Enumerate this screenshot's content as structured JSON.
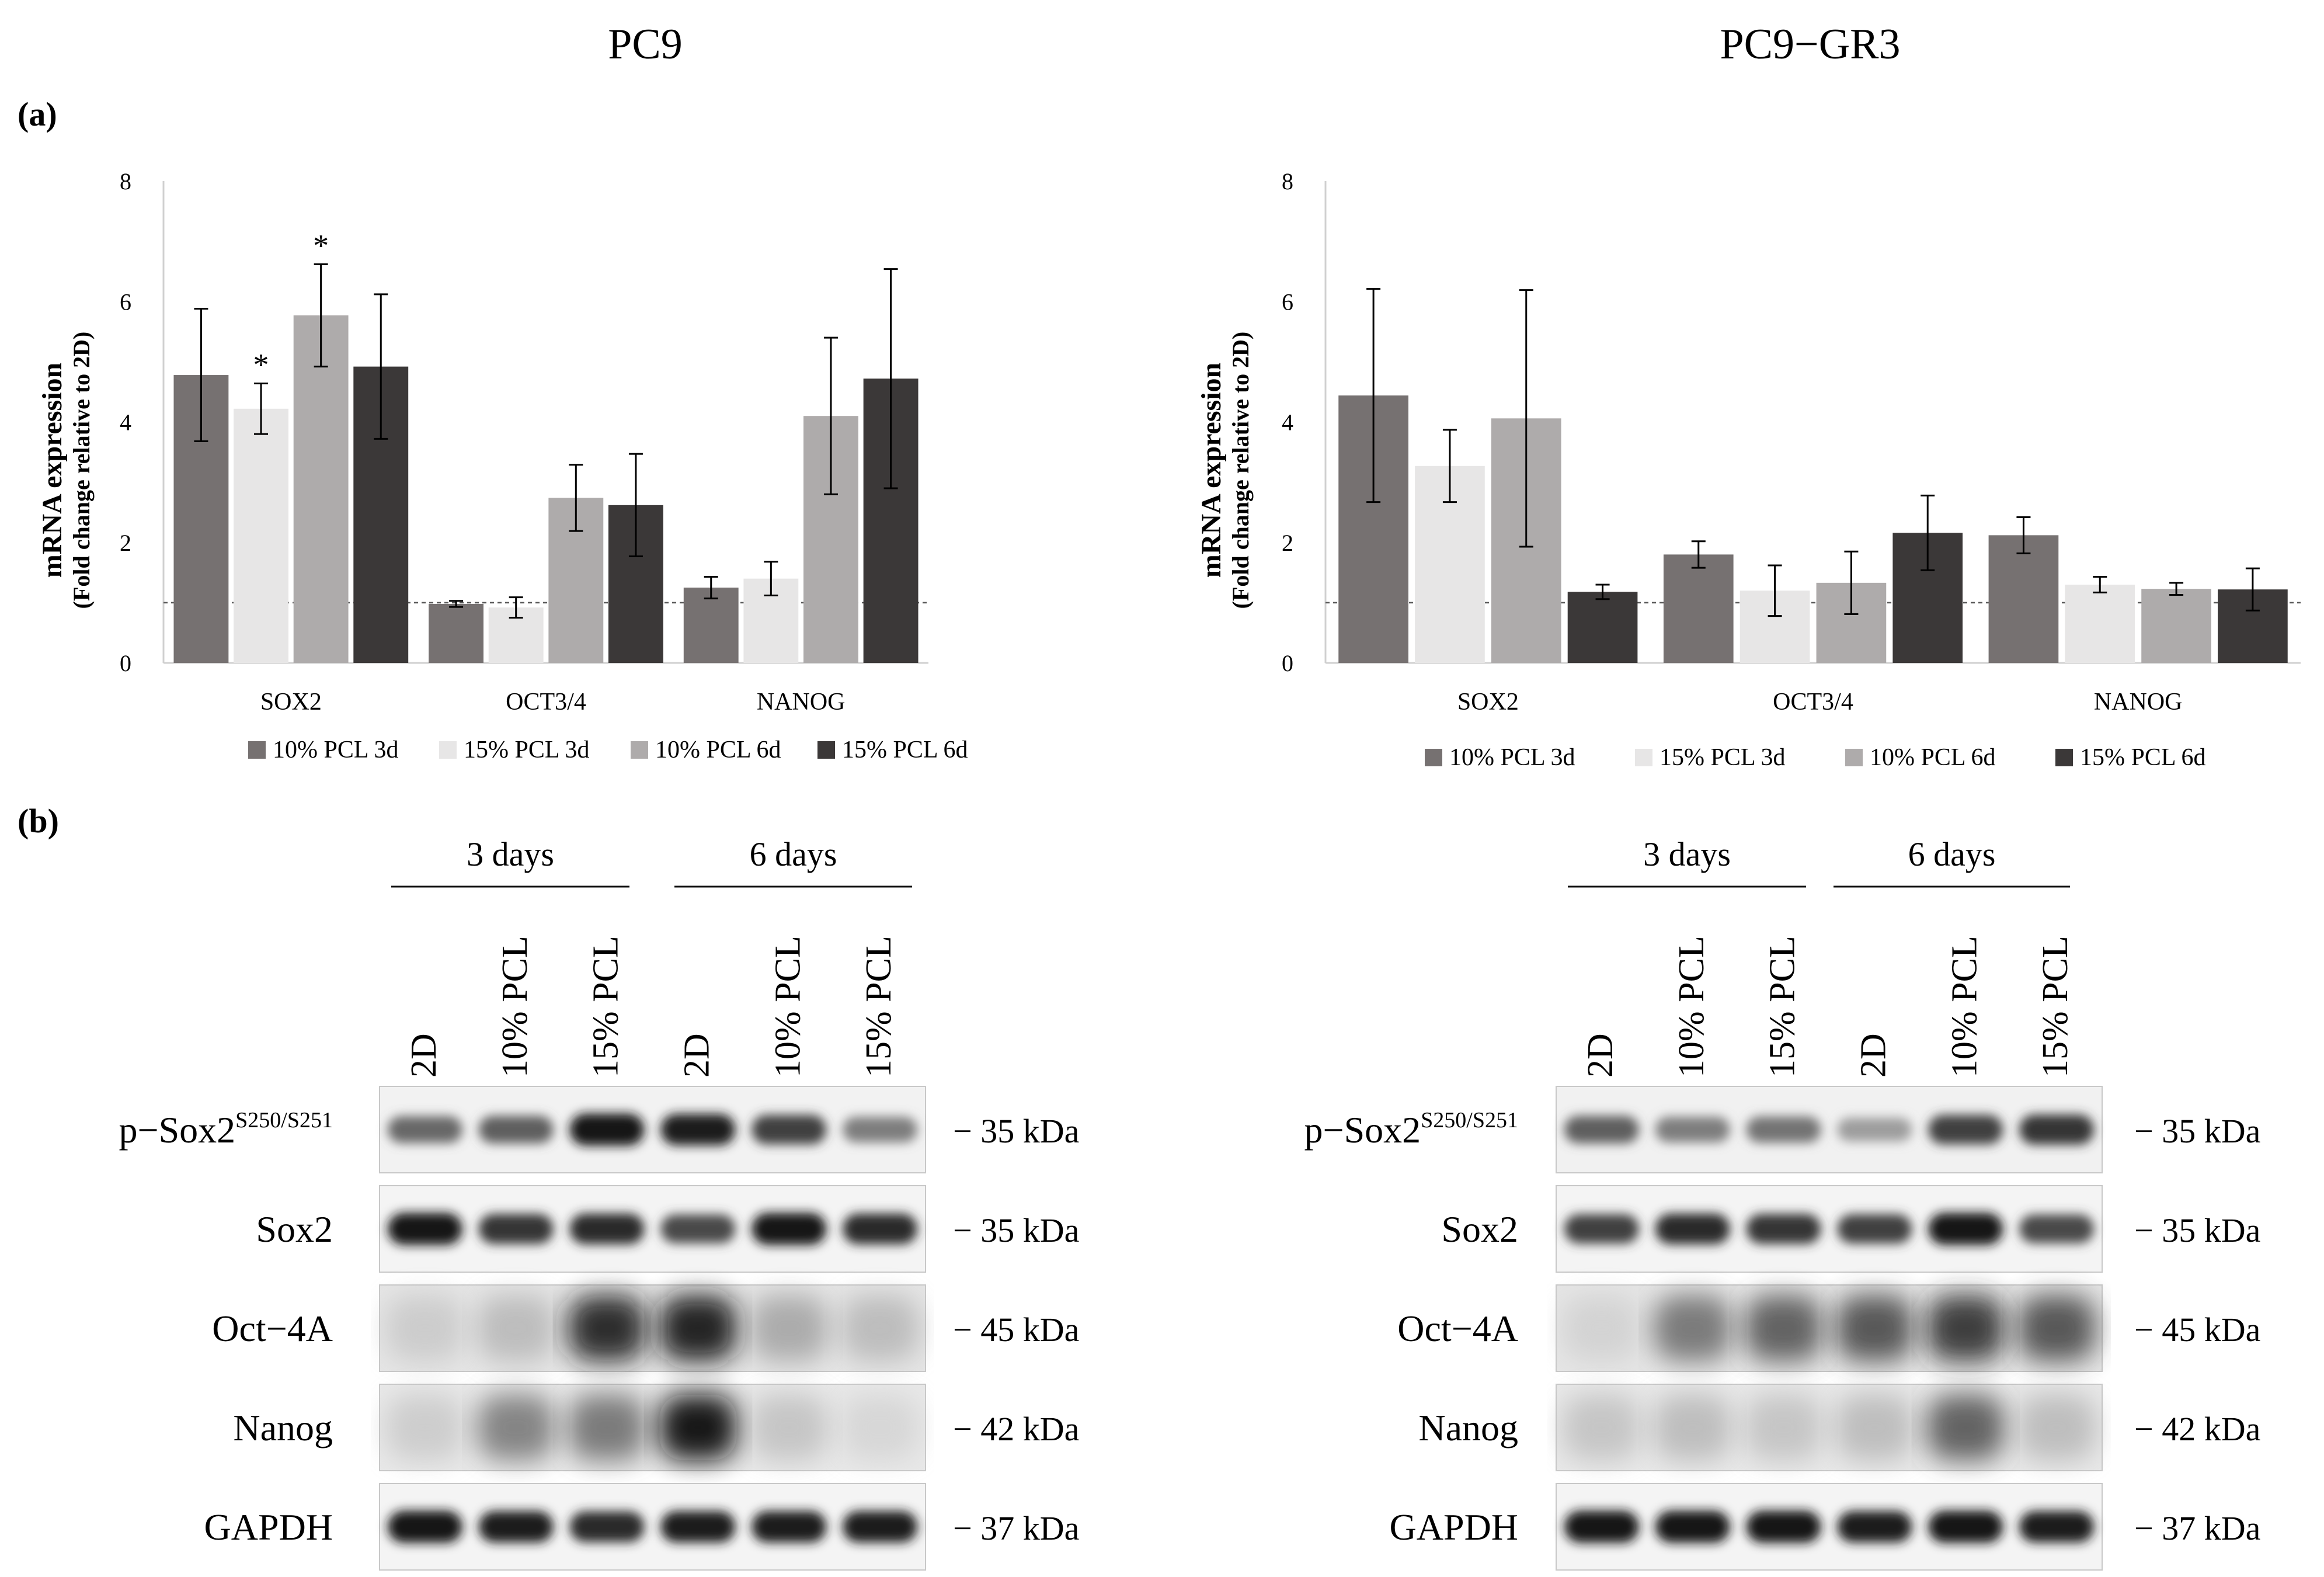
{
  "panel_a_label": "(a)",
  "panel_b_label": "(b)",
  "colors": {
    "series": [
      "#767171",
      "#e7e6e6",
      "#aeabab",
      "#3b3838"
    ],
    "axis": "#d0d0d0",
    "text": "#111111",
    "baseline_dash": "#555555"
  },
  "chart_data": [
    {
      "type": "bar",
      "title": "PC9",
      "ylabel": "mRNA expression",
      "ylabel_sub": "(Fold change relative to 2D)",
      "xlabel": "",
      "ylim": [
        0,
        8
      ],
      "yticks": [
        0,
        2,
        4,
        6,
        8
      ],
      "reference_line": 1,
      "grid": false,
      "legend_position": "bottom",
      "categories": [
        "SOX2",
        "OCT3/4",
        "NANOG"
      ],
      "series": [
        {
          "name": "10% PCL 3d",
          "values": [
            4.78,
            0.98,
            1.25
          ],
          "errors": [
            1.1,
            0.05,
            0.18
          ],
          "sig": [
            "",
            "",
            ""
          ]
        },
        {
          "name": "15% PCL 3d",
          "values": [
            4.22,
            0.92,
            1.4
          ],
          "errors": [
            0.42,
            0.17,
            0.28
          ],
          "sig": [
            "*",
            "",
            ""
          ]
        },
        {
          "name": "10% PCL 6d",
          "values": [
            5.77,
            2.74,
            4.1
          ],
          "errors": [
            0.85,
            0.55,
            1.3
          ],
          "sig": [
            "*",
            "",
            ""
          ]
        },
        {
          "name": "15% PCL 6d",
          "values": [
            4.92,
            2.62,
            4.72
          ],
          "errors": [
            1.2,
            0.85,
            1.82
          ],
          "sig": [
            "",
            "",
            ""
          ]
        }
      ]
    },
    {
      "type": "bar",
      "title": "PC9−GR3",
      "ylabel": "mRNA expression",
      "ylabel_sub": "(Fold change relative to 2D)",
      "xlabel": "",
      "ylim": [
        0,
        8
      ],
      "yticks": [
        0,
        2,
        4,
        6,
        8
      ],
      "reference_line": 1,
      "grid": false,
      "legend_position": "bottom",
      "categories": [
        "SOX2",
        "OCT3/4",
        "NANOG"
      ],
      "series": [
        {
          "name": "10% PCL 3d",
          "values": [
            4.44,
            1.8,
            2.12
          ],
          "errors": [
            1.77,
            0.22,
            0.3
          ],
          "sig": [
            "",
            "",
            ""
          ]
        },
        {
          "name": "15% PCL 3d",
          "values": [
            3.27,
            1.2,
            1.3
          ],
          "errors": [
            0.6,
            0.42,
            0.13
          ],
          "sig": [
            "",
            "",
            ""
          ]
        },
        {
          "name": "10% PCL 6d",
          "values": [
            4.06,
            1.33,
            1.23
          ],
          "errors": [
            2.13,
            0.52,
            0.1
          ],
          "sig": [
            "",
            "",
            ""
          ]
        },
        {
          "name": "15% PCL 6d",
          "values": [
            1.18,
            2.16,
            1.22
          ],
          "errors": [
            0.12,
            0.62,
            0.35
          ],
          "sig": [
            "",
            "",
            ""
          ]
        }
      ]
    }
  ],
  "blots": [
    {
      "groups": [
        "3 days",
        "6 days"
      ],
      "lanes": [
        "2D",
        "10% PCL",
        "15% PCL",
        "2D",
        "10% PCL",
        "15% PCL"
      ],
      "rows": [
        {
          "label": "p−Sox2",
          "sup": "S250/S251",
          "kda": "− 35 kDa",
          "intensity": [
            0.55,
            0.6,
            0.95,
            0.9,
            0.75,
            0.45
          ],
          "smear": 0.1
        },
        {
          "label": "Sox2",
          "sup": "",
          "kda": "− 35 kDa",
          "intensity": [
            0.95,
            0.8,
            0.85,
            0.7,
            0.95,
            0.85
          ],
          "smear": 0.05
        },
        {
          "label": "Oct−4A",
          "sup": "",
          "kda": "− 45 kDa",
          "intensity": [
            0.15,
            0.25,
            0.9,
            0.95,
            0.35,
            0.25
          ],
          "smear": 0.55
        },
        {
          "label": "Nanog",
          "sup": "",
          "kda": "− 42 kDa",
          "intensity": [
            0.15,
            0.55,
            0.6,
            1.0,
            0.2,
            0.08
          ],
          "smear": 0.45
        },
        {
          "label": "GAPDH",
          "sup": "",
          "kda": "− 37 kDa",
          "intensity": [
            0.95,
            0.9,
            0.85,
            0.9,
            0.9,
            0.9
          ],
          "smear": 0.05
        }
      ]
    },
    {
      "groups": [
        "3 days",
        "6 days"
      ],
      "lanes": [
        "2D",
        "10% PCL",
        "15% PCL",
        "2D",
        "10% PCL",
        "15% PCL"
      ],
      "rows": [
        {
          "label": "p−Sox2",
          "sup": "S250/S251",
          "kda": "− 35 kDa",
          "intensity": [
            0.6,
            0.45,
            0.5,
            0.3,
            0.75,
            0.8
          ],
          "smear": 0.15
        },
        {
          "label": "Sox2",
          "sup": "",
          "kda": "− 35 kDa",
          "intensity": [
            0.75,
            0.85,
            0.8,
            0.75,
            0.95,
            0.7
          ],
          "smear": 0.05
        },
        {
          "label": "Oct−4A",
          "sup": "",
          "kda": "− 45 kDa",
          "intensity": [
            0.1,
            0.6,
            0.7,
            0.75,
            0.85,
            0.75
          ],
          "smear": 0.55
        },
        {
          "label": "Nanog",
          "sup": "",
          "kda": "− 42 kDa",
          "intensity": [
            0.2,
            0.25,
            0.2,
            0.25,
            0.7,
            0.25
          ],
          "smear": 0.45
        },
        {
          "label": "GAPDH",
          "sup": "",
          "kda": "− 37 kDa",
          "intensity": [
            0.95,
            0.95,
            0.95,
            0.9,
            0.95,
            0.9
          ],
          "smear": 0.05
        }
      ]
    }
  ]
}
